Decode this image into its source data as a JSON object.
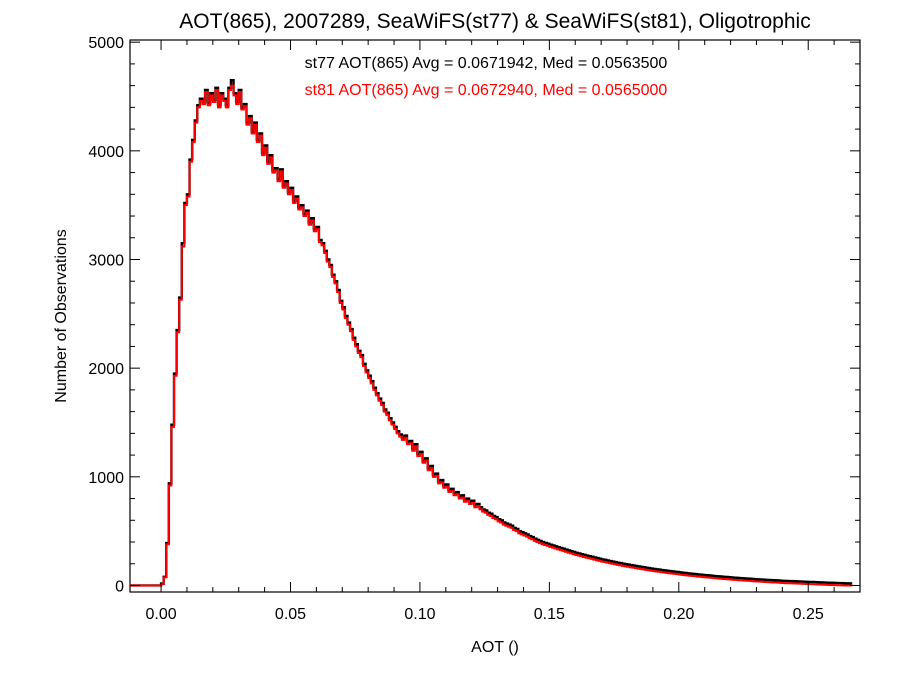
{
  "chart_data": {
    "type": "histogram-step",
    "title": "AOT(865), 2007289, SeaWiFS(st77) & SeaWiFS(st81), Oligotrophic",
    "xlabel": "AOT ()",
    "ylabel": "Number of Observations",
    "xlim": [
      -0.012,
      0.27
    ],
    "ylim": [
      -60,
      5020
    ],
    "xticks": [
      0.0,
      0.05,
      0.1,
      0.15,
      0.2,
      0.25
    ],
    "xtick_labels": [
      "0.00",
      "0.05",
      "0.10",
      "0.15",
      "0.20",
      "0.25"
    ],
    "yticks": [
      0,
      1000,
      2000,
      3000,
      4000,
      5000
    ],
    "ytick_labels": [
      "0",
      "1000",
      "2000",
      "3000",
      "4000",
      "5000"
    ],
    "grid": false,
    "annotations": [
      {
        "text": "st77 AOT(865) Avg = 0.0671942, Med = 0.0563500",
        "color": "#000000"
      },
      {
        "text": "st81 AOT(865) Avg = 0.0672940, Med = 0.0565000",
        "color": "#ff0000"
      }
    ],
    "bin_width": 0.001,
    "x_start": -0.012,
    "series": [
      {
        "color": "#000000",
        "values": [
          0,
          0,
          0,
          0,
          0,
          0,
          0,
          0,
          0,
          0,
          0,
          0,
          15,
          80,
          390,
          940,
          1480,
          1950,
          2350,
          2650,
          3150,
          3520,
          3600,
          3920,
          4100,
          4280,
          4420,
          4480,
          4450,
          4560,
          4440,
          4530,
          4470,
          4580,
          4420,
          4530,
          4480,
          4420,
          4580,
          4650,
          4530,
          4450,
          4560,
          4400,
          4430,
          4260,
          4320,
          4180,
          4260,
          4100,
          4160,
          3980,
          4050,
          3900,
          3960,
          3820,
          3840,
          3740,
          3830,
          3680,
          3720,
          3620,
          3660,
          3540,
          3580,
          3480,
          3500,
          3420,
          3450,
          3340,
          3380,
          3280,
          3300,
          3180,
          3150,
          3080,
          3000,
          2950,
          2860,
          2800,
          2720,
          2620,
          2560,
          2480,
          2420,
          2360,
          2280,
          2220,
          2160,
          2120,
          2040,
          1980,
          1930,
          1880,
          1820,
          1770,
          1720,
          1680,
          1620,
          1590,
          1540,
          1500,
          1460,
          1420,
          1390,
          1360,
          1380,
          1320,
          1330,
          1260,
          1300,
          1210,
          1230,
          1150,
          1170,
          1080,
          1100,
          1020,
          1030,
          960,
          970,
          920,
          930,
          880,
          890,
          850,
          860,
          820,
          830,
          790,
          800,
          770,
          780,
          740,
          750,
          720,
          700,
          690,
          670,
          660,
          640,
          630,
          610,
          600,
          580,
          570,
          560,
          550,
          530,
          520,
          500,
          490,
          480,
          470,
          455,
          445,
          430,
          420,
          410,
          400,
          392,
          384,
          375,
          368,
          360,
          352,
          345,
          338,
          330,
          322,
          315,
          308,
          300,
          295,
          288,
          282,
          275,
          270,
          265,
          258,
          252,
          246,
          240,
          236,
          230,
          225,
          220,
          215,
          210,
          206,
          200,
          196,
          192,
          188,
          184,
          180,
          175,
          172,
          168,
          164,
          160,
          156,
          152,
          149,
          146,
          142,
          139,
          136,
          133,
          130,
          127,
          124,
          121,
          118,
          115,
          112,
          110,
          107,
          105,
          102,
          100,
          97,
          95,
          93,
          91,
          88,
          86,
          84,
          82,
          80,
          78,
          76,
          74,
          72,
          70,
          68,
          67,
          65,
          63,
          62,
          60,
          58,
          57,
          55,
          54,
          52,
          51,
          50,
          48,
          47,
          46,
          44,
          43,
          42,
          41,
          40,
          39,
          38,
          37,
          36,
          35,
          34,
          33,
          32,
          31,
          30,
          29,
          28,
          27,
          26,
          25,
          24,
          23,
          22,
          22,
          21,
          20,
          20,
          19
        ]
      },
      {
        "color": "#ff0000",
        "values": [
          0,
          0,
          0,
          0,
          0,
          0,
          0,
          0,
          0,
          0,
          0,
          0,
          12,
          75,
          380,
          920,
          1460,
          1930,
          2330,
          2630,
          3120,
          3500,
          3580,
          3900,
          4080,
          4260,
          4400,
          4460,
          4430,
          4540,
          4420,
          4510,
          4450,
          4560,
          4400,
          4510,
          4460,
          4400,
          4560,
          4600,
          4510,
          4430,
          4540,
          4380,
          4410,
          4240,
          4300,
          4160,
          4240,
          4080,
          4140,
          3960,
          4030,
          3880,
          3940,
          3800,
          3820,
          3720,
          3810,
          3660,
          3700,
          3600,
          3640,
          3520,
          3560,
          3460,
          3480,
          3400,
          3430,
          3320,
          3360,
          3260,
          3280,
          3160,
          3130,
          3060,
          2980,
          2930,
          2840,
          2780,
          2700,
          2600,
          2540,
          2460,
          2400,
          2340,
          2260,
          2200,
          2140,
          2100,
          2020,
          1960,
          1910,
          1860,
          1800,
          1750,
          1700,
          1660,
          1600,
          1570,
          1520,
          1480,
          1440,
          1400,
          1370,
          1340,
          1360,
          1300,
          1310,
          1240,
          1280,
          1190,
          1210,
          1130,
          1150,
          1060,
          1080,
          1000,
          1010,
          940,
          950,
          900,
          910,
          860,
          870,
          830,
          840,
          800,
          810,
          770,
          780,
          750,
          760,
          720,
          730,
          700,
          680,
          670,
          650,
          640,
          620,
          610,
          590,
          580,
          560,
          550,
          540,
          530,
          510,
          500,
          480,
          470,
          460,
          450,
          435,
          425,
          410,
          400,
          390,
          380,
          372,
          364,
          355,
          348,
          340,
          332,
          325,
          318,
          310,
          302,
          295,
          288,
          280,
          275,
          268,
          262,
          255,
          250,
          245,
          238,
          232,
          226,
          220,
          216,
          210,
          205,
          200,
          195,
          190,
          186,
          180,
          176,
          172,
          168,
          164,
          160,
          155,
          152,
          148,
          144,
          140,
          136,
          132,
          129,
          126,
          122,
          119,
          116,
          113,
          110,
          107,
          104,
          101,
          98,
          95,
          92,
          90,
          87,
          85,
          82,
          80,
          77,
          75,
          73,
          71,
          68,
          66,
          64,
          62,
          60,
          58,
          56,
          54,
          52,
          50,
          48,
          47,
          45,
          43,
          42,
          40,
          38,
          37,
          35,
          34,
          32,
          31,
          30,
          28,
          27,
          26,
          24,
          23,
          22,
          21,
          20,
          19,
          18,
          17,
          16,
          15,
          14,
          13,
          12,
          11,
          10,
          9,
          8,
          7,
          6,
          5,
          4,
          3,
          2,
          2,
          1,
          0,
          0,
          0
        ]
      }
    ]
  }
}
